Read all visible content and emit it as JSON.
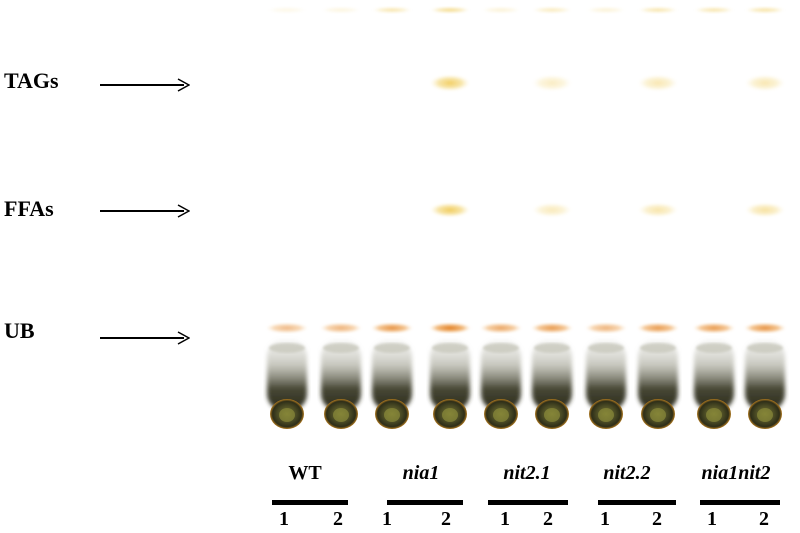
{
  "band_labels": [
    {
      "id": "tags",
      "text": "TAGs"
    },
    {
      "id": "ffas",
      "text": "FFAs"
    },
    {
      "id": "ub",
      "text": "UB"
    }
  ],
  "groups": [
    {
      "id": "wt",
      "label": "WT",
      "italic": false,
      "lanes": [
        "1",
        "2"
      ]
    },
    {
      "id": "nia1",
      "label": "nia1",
      "italic": true,
      "lanes": [
        "1",
        "2"
      ]
    },
    {
      "id": "nit2-1",
      "label": "nit2.1",
      "italic": true,
      "lanes": [
        "1",
        "2"
      ]
    },
    {
      "id": "nit2-2",
      "label": "nit2.2",
      "italic": true,
      "lanes": [
        "1",
        "2"
      ]
    },
    {
      "id": "nia1nit2",
      "label": "nia1nit2",
      "italic": true,
      "lanes": [
        "1",
        "2"
      ]
    }
  ],
  "band_intensity": {
    "lane_order": [
      "WT-1",
      "WT-2",
      "nia1-1",
      "nia1-2",
      "nit2.1-1",
      "nit2.1-2",
      "nit2.2-1",
      "nit2.2-2",
      "nia1nit2-1",
      "nia1nit2-2"
    ],
    "front": [
      0.15,
      0.2,
      0.5,
      0.7,
      0.25,
      0.4,
      0.25,
      0.5,
      0.5,
      0.55
    ],
    "tags": [
      0,
      0,
      0,
      0.9,
      0,
      0.35,
      0,
      0.45,
      0,
      0.45
    ],
    "ffas": [
      0,
      0,
      0,
      0.95,
      0,
      0.4,
      0,
      0.5,
      0,
      0.55
    ],
    "ub": [
      0.55,
      0.6,
      0.85,
      1.0,
      0.7,
      0.8,
      0.6,
      0.8,
      0.8,
      0.85
    ]
  },
  "colors": {
    "lipid_band": "#e8c24a",
    "ub_band": "#e08a2a",
    "pigment_dark": "#3a3a22",
    "pigment_green": "#6b6b2a",
    "origin_rim": "#c8861c"
  }
}
